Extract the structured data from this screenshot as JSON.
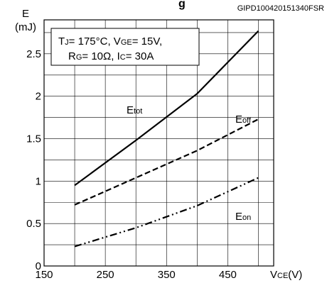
{
  "header": {
    "code": "GIPD100420151340FSR",
    "title_fragment": "g"
  },
  "chart_data": {
    "type": "line",
    "ylabel": {
      "symbol": "E",
      "unit": "(mJ)"
    },
    "xlabel": {
      "main": "V",
      "sub": "CE",
      "unit": "(V)"
    },
    "xlim": [
      150,
      525
    ],
    "ylim": [
      0,
      2.9
    ],
    "x_ticks": [
      {
        "value": 150,
        "label": "150"
      },
      {
        "value": 250,
        "label": "250"
      },
      {
        "value": 350,
        "label": "350"
      },
      {
        "value": 450,
        "label": "450"
      }
    ],
    "y_ticks": [
      {
        "value": 0,
        "label": "0"
      },
      {
        "value": 0.5,
        "label": "0.5"
      },
      {
        "value": 1,
        "label": "1"
      },
      {
        "value": 1.5,
        "label": "1.5"
      },
      {
        "value": 2,
        "label": "2"
      },
      {
        "value": 2.5,
        "label": "2.5"
      }
    ],
    "grid": true,
    "conditions": {
      "line1": [
        {
          "main": "T",
          "sub": "J"
        },
        {
          "text": "= 175°C, "
        },
        {
          "main": "V",
          "sub": "GE"
        },
        {
          "text": "= 15V,"
        }
      ],
      "line2": [
        {
          "main": "R",
          "sub": "G"
        },
        {
          "text": "= 10Ω, "
        },
        {
          "main": "I",
          "sub": "C"
        },
        {
          "text": "= 30A"
        }
      ]
    },
    "series": [
      {
        "name": "tot",
        "label": {
          "main": "E",
          "sub": "tot"
        },
        "style": "solid",
        "x": [
          200,
          300,
          400,
          500
        ],
        "y": [
          0.95,
          1.48,
          2.03,
          2.77
        ]
      },
      {
        "name": "off",
        "label": {
          "main": "E",
          "sub": "off"
        },
        "style": "dash",
        "x": [
          200,
          300,
          400,
          500
        ],
        "y": [
          0.72,
          1.04,
          1.36,
          1.73
        ]
      },
      {
        "name": "on",
        "label": {
          "main": "E",
          "sub": "on"
        },
        "style": "dashdotdot",
        "x": [
          200,
          300,
          400,
          500
        ],
        "y": [
          0.23,
          0.45,
          0.71,
          1.04
        ]
      }
    ]
  }
}
